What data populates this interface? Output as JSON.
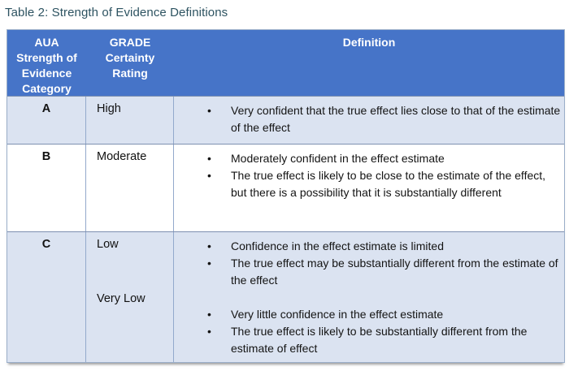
{
  "title": "Table 2: Strength of Evidence Definitions",
  "glyphs": {
    "bullet": "•"
  },
  "colors": {
    "title_text": "#2d5361",
    "header_bg": "#4674c8",
    "header_text": "#ffffff",
    "band_row_bg": "#dbe3f1",
    "white_row_bg": "#ffffff",
    "grid_border": "#93a9cc"
  },
  "table": {
    "headers": [
      {
        "lines": [
          "AUA",
          "Strength of",
          "Evidence",
          "Category"
        ]
      },
      {
        "lines": [
          "GRADE",
          "Certainty",
          "Rating"
        ]
      },
      {
        "lines": [
          "Definition"
        ]
      }
    ],
    "rows": [
      {
        "category": "A",
        "sections": [
          {
            "rating": "High",
            "bullets": [
              "Very confident that the true effect lies close to that of the estimate of the effect"
            ]
          }
        ]
      },
      {
        "category": "B",
        "sections": [
          {
            "rating": "Moderate",
            "bullets": [
              "Moderately confident in the effect estimate",
              "The true effect is likely to be close to the estimate of the effect, but there is a possibility that it is substantially different"
            ]
          }
        ]
      },
      {
        "category": "C",
        "sections": [
          {
            "rating": "Low",
            "bullets": [
              "Confidence in the effect estimate is limited",
              "The true effect may be substantially different from the estimate of the effect"
            ]
          },
          {
            "rating": "Very Low",
            "bullets": [
              "Very little confidence in the effect estimate",
              "The true effect is likely to be substantially different from the estimate of effect"
            ]
          }
        ]
      }
    ]
  }
}
